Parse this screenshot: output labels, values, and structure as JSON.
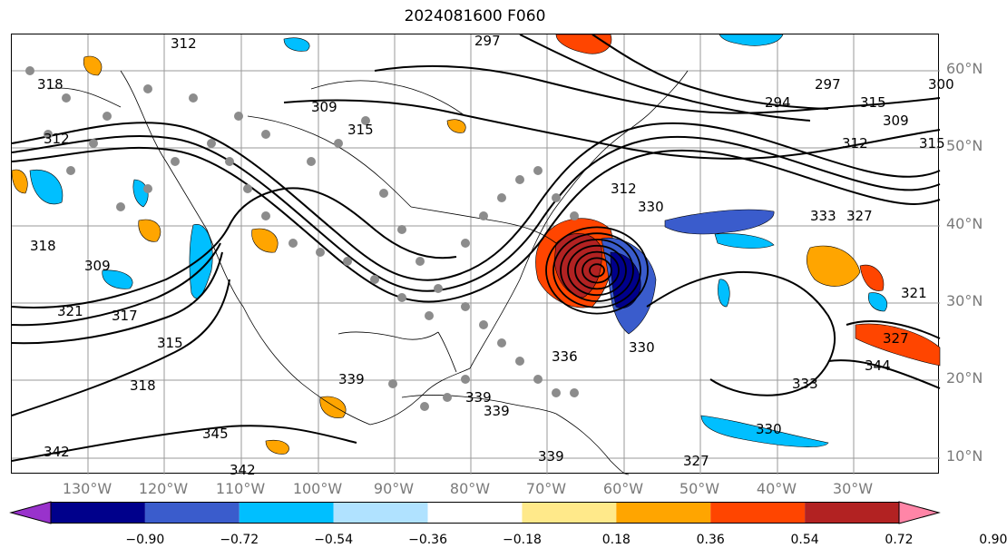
{
  "title": "2024081600 F060",
  "map": {
    "latitude_labels": [
      "60°N",
      "50°N",
      "40°N",
      "30°N",
      "20°N",
      "10°N"
    ],
    "longitude_labels": [
      "130°W",
      "120°W",
      "110°W",
      "100°W",
      "90°W",
      "80°W",
      "70°W",
      "60°W",
      "50°W",
      "40°W",
      "30°W"
    ],
    "contour_labels": [
      "312",
      "318",
      "312",
      "309",
      "315",
      "318",
      "309",
      "321",
      "317",
      "315",
      "318",
      "297",
      "294",
      "297",
      "300",
      "315",
      "309",
      "312",
      "315",
      "330",
      "333",
      "327",
      "321",
      "327",
      "344",
      "330",
      "333",
      "330",
      "336",
      "339",
      "339",
      "345",
      "342",
      "342",
      "339",
      "327",
      "312",
      "339"
    ],
    "colors": {
      "frame": "#000000",
      "grid": "#9a9a9a",
      "contour": "#000000",
      "coast": "#000000",
      "station": "#8c8c8c"
    }
  },
  "colorbar": {
    "ticks": [
      "−0.90",
      "−0.72",
      "−0.54",
      "−0.36",
      "−0.18",
      "0.18",
      "0.36",
      "0.54",
      "0.72",
      "0.90"
    ],
    "bins": [
      {
        "color": "#9932cc"
      },
      {
        "color": "#00008b"
      },
      {
        "color": "#3a5ccc"
      },
      {
        "color": "#00bfff"
      },
      {
        "color": "#b0e2ff"
      },
      {
        "color": "#ffffff"
      },
      {
        "color": "#ffe98a"
      },
      {
        "color": "#ffa500"
      },
      {
        "color": "#ff4500"
      },
      {
        "color": "#b22222"
      },
      {
        "color": "#ff85a7"
      }
    ],
    "extend": "both"
  }
}
